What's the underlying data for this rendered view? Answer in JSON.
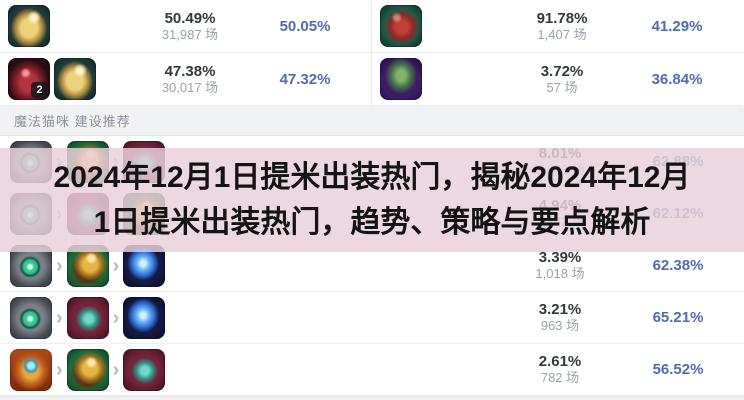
{
  "colors": {
    "win_rate_blue": "#4e6cae",
    "overlay_tint": "#e9d0d9",
    "band_gray": "#f1f2f4"
  },
  "top": {
    "left": {
      "rows": [
        {
          "icons": [
            "gold-item"
          ],
          "pick": "50.49%",
          "games": "31,987 场",
          "win": "50.05%"
        },
        {
          "icons": [
            "potion",
            "gold-item"
          ],
          "potion_count": "2",
          "pick": "47.38%",
          "games": "30,017 场",
          "win": "47.32%"
        }
      ]
    },
    "right": {
      "rows": [
        {
          "icons": [
            "red-boots"
          ],
          "pick": "91.78%",
          "games": "1,407 场",
          "win": "41.29%"
        },
        {
          "icons": [
            "green-boots"
          ],
          "pick": "3.72%",
          "games": "57 场",
          "win": "36.84%"
        }
      ]
    }
  },
  "section_header": "魔法猫咪 建设推荐",
  "build_table": {
    "rows": [
      {
        "icons": [
          "eye-trinket",
          "gold-bell",
          "void-grub"
        ],
        "pick": "8.01%",
        "games": "2,403 场",
        "win": "62.88%"
      },
      {
        "icons": [
          "eye-trinket",
          "void-grub",
          "gold-bell"
        ],
        "pick": "4.94%",
        "games": "1,482 场",
        "win": "62.12%"
      },
      {
        "icons": [
          "eye-trinket",
          "gold-bell",
          "blue-dragon"
        ],
        "pick": "3.39%",
        "games": "1,018 场",
        "win": "62.38%"
      },
      {
        "icons": [
          "eye-trinket",
          "void-grub",
          "blue-dragon"
        ],
        "pick": "3.21%",
        "games": "963 场",
        "win": "65.21%"
      },
      {
        "icons": [
          "orange-compass",
          "gold-bell",
          "void-grub"
        ],
        "pick": "2.61%",
        "games": "782 场",
        "win": "56.52%"
      }
    ]
  },
  "overlay": {
    "line1": "2024年12月1日提米出装热门，揭秘2024年12月",
    "line2": "1日提米出装热门，趋势、策略与要点解析"
  }
}
